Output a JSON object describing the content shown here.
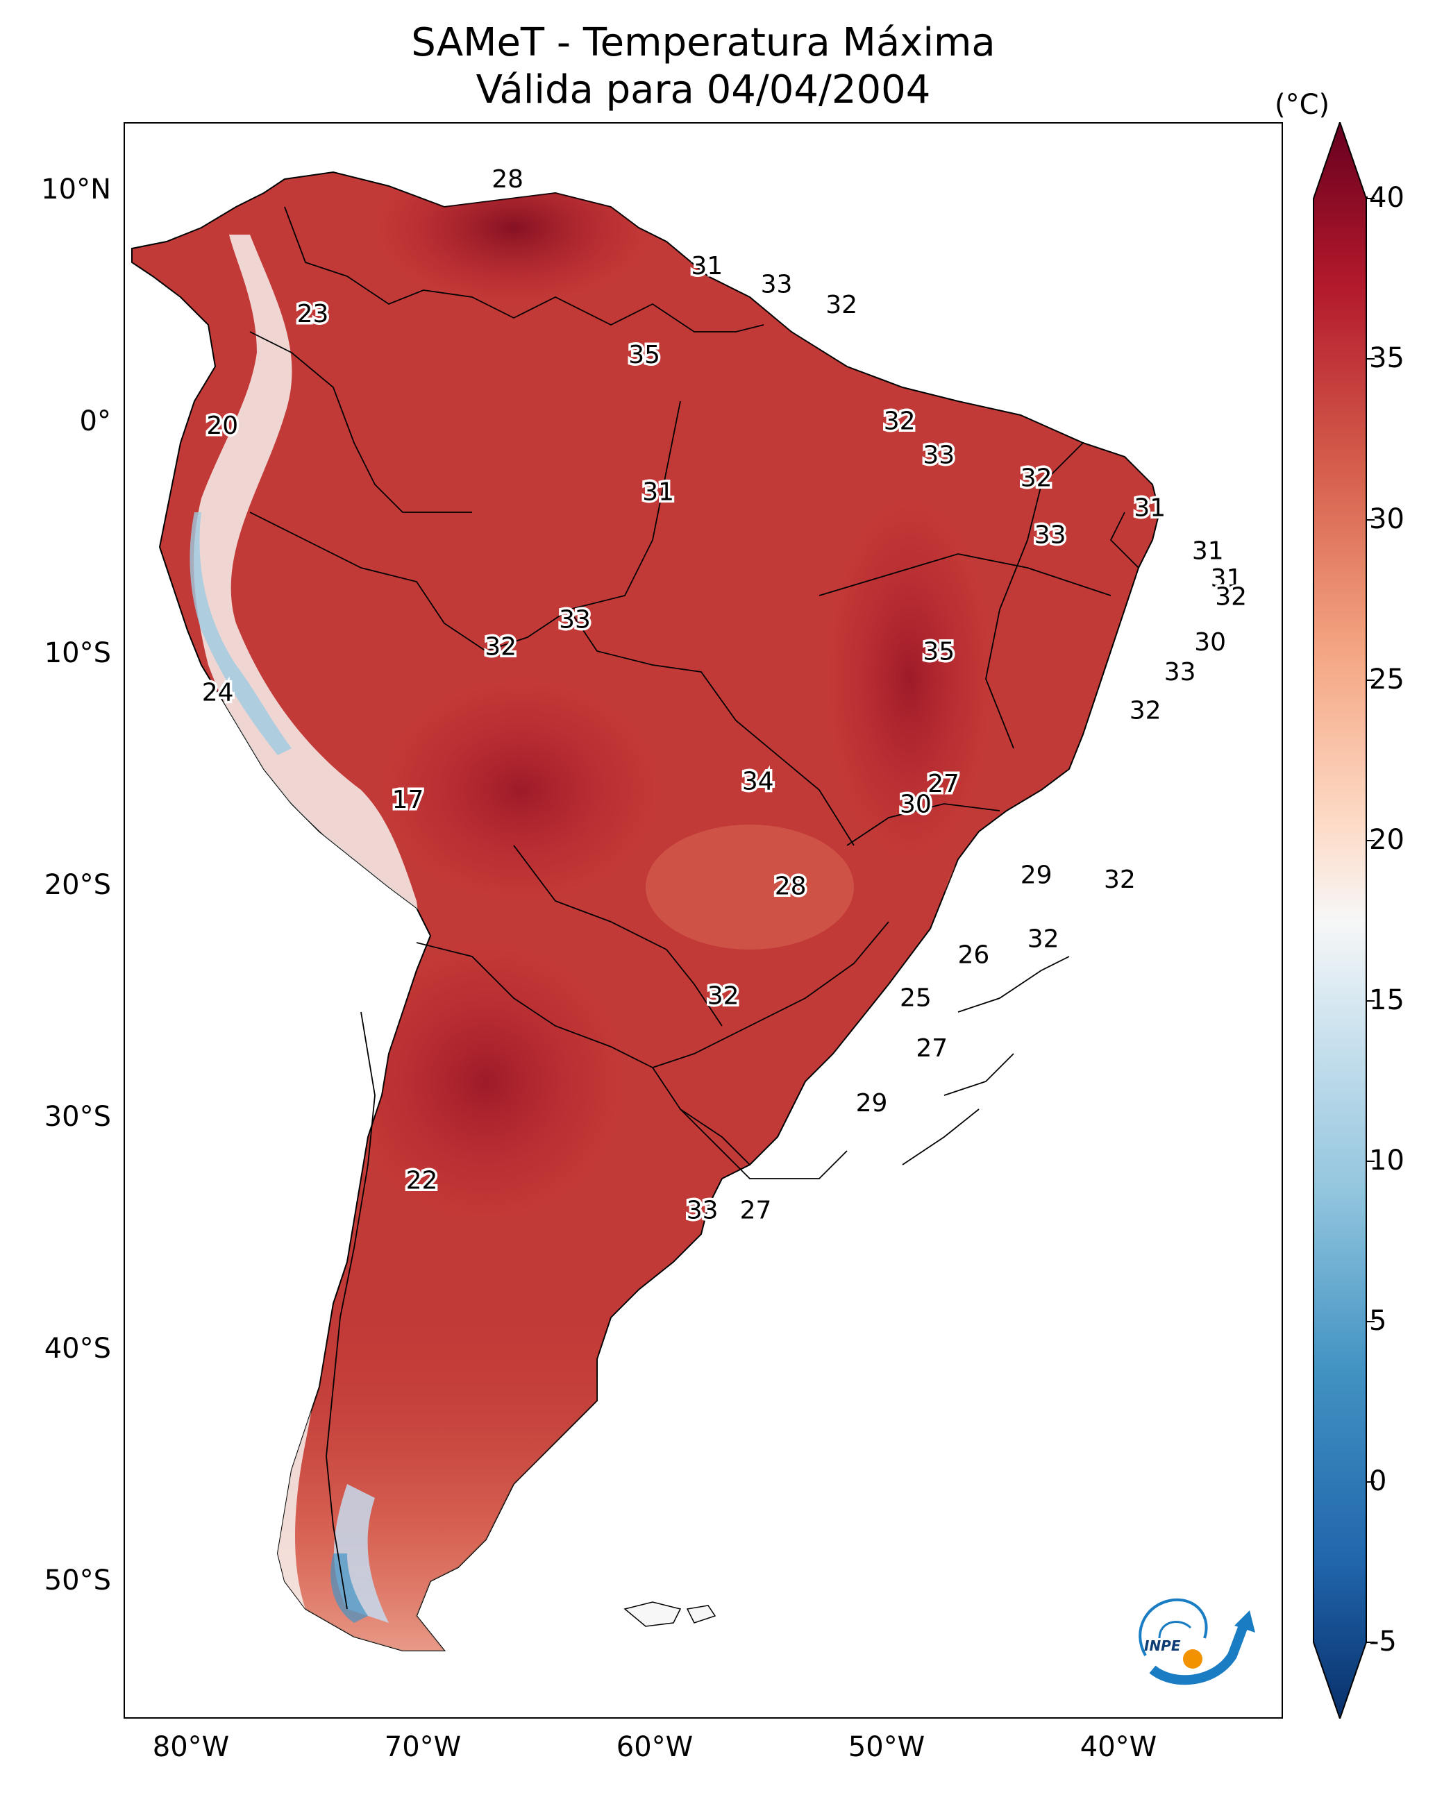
{
  "title": {
    "line1": "SAMeT - Temperatura Máxima",
    "line2": "Válida para 04/04/2004"
  },
  "axes": {
    "lat_labels": [
      "10°N",
      "0°",
      "10°S",
      "20°S",
      "30°S",
      "40°S",
      "50°S"
    ],
    "lon_labels": [
      "80°W",
      "70°W",
      "60°W",
      "50°W",
      "40°W"
    ]
  },
  "colorbar": {
    "unit": "(°C)",
    "ticks": [
      "40",
      "35",
      "30",
      "25",
      "20",
      "15",
      "10",
      "5",
      "0",
      "-5"
    ],
    "range": [
      -5,
      40
    ],
    "colors": [
      "#08306b",
      "#2166ac",
      "#4393c3",
      "#92c5de",
      "#d1e5f0",
      "#f7f7f7",
      "#fddbc7",
      "#f4a582",
      "#d6604d",
      "#b2182b",
      "#67001f"
    ]
  },
  "chart_data": {
    "type": "heatmap",
    "title": "SAMeT - Temperatura Máxima — Válida para 04/04/2004",
    "unit": "°C",
    "extent": {
      "lon": [
        -83,
        -33
      ],
      "lat": [
        -57,
        13
      ]
    },
    "point_labels": [
      {
        "value": "28",
        "lon": -66.5,
        "lat": 10.5
      },
      {
        "value": "31",
        "lon": -57.9,
        "lat": 6.7
      },
      {
        "value": "33",
        "lon": -54.9,
        "lat": 5.9
      },
      {
        "value": "32",
        "lon": -52.1,
        "lat": 5.0
      },
      {
        "value": "23",
        "lon": -74.9,
        "lat": 4.6
      },
      {
        "value": "35",
        "lon": -60.6,
        "lat": 2.8
      },
      {
        "value": "20",
        "lon": -78.8,
        "lat": -0.3
      },
      {
        "value": "32",
        "lon": -49.6,
        "lat": -0.1
      },
      {
        "value": "33",
        "lon": -47.9,
        "lat": -1.6
      },
      {
        "value": "32",
        "lon": -43.7,
        "lat": -2.6
      },
      {
        "value": "31",
        "lon": -60.0,
        "lat": -3.2
      },
      {
        "value": "31",
        "lon": -38.8,
        "lat": -3.9
      },
      {
        "value": "33",
        "lon": -43.1,
        "lat": -5.1
      },
      {
        "value": "31",
        "lon": -36.3,
        "lat": -5.8
      },
      {
        "value": "31",
        "lon": -35.5,
        "lat": -7.0
      },
      {
        "value": "32",
        "lon": -35.3,
        "lat": -7.8
      },
      {
        "value": "33",
        "lon": -63.6,
        "lat": -8.8
      },
      {
        "value": "30",
        "lon": -36.2,
        "lat": -9.8
      },
      {
        "value": "32",
        "lon": -66.8,
        "lat": -10.0
      },
      {
        "value": "35",
        "lon": -47.9,
        "lat": -10.2
      },
      {
        "value": "33",
        "lon": -37.5,
        "lat": -11.1
      },
      {
        "value": "24",
        "lon": -79.0,
        "lat": -12.0
      },
      {
        "value": "32",
        "lon": -39.0,
        "lat": -12.8
      },
      {
        "value": "34",
        "lon": -55.7,
        "lat": -15.9
      },
      {
        "value": "27",
        "lon": -47.7,
        "lat": -16.0
      },
      {
        "value": "30",
        "lon": -48.9,
        "lat": -16.9
      },
      {
        "value": "17",
        "lon": -70.8,
        "lat": -16.7
      },
      {
        "value": "29",
        "lon": -43.7,
        "lat": -20.0
      },
      {
        "value": "28",
        "lon": -54.3,
        "lat": -20.5
      },
      {
        "value": "32",
        "lon": -40.1,
        "lat": -20.2
      },
      {
        "value": "32",
        "lon": -43.4,
        "lat": -22.8
      },
      {
        "value": "26",
        "lon": -46.4,
        "lat": -23.5
      },
      {
        "value": "25",
        "lon": -48.9,
        "lat": -25.4
      },
      {
        "value": "32",
        "lon": -57.2,
        "lat": -25.3
      },
      {
        "value": "27",
        "lon": -48.2,
        "lat": -27.6
      },
      {
        "value": "29",
        "lon": -50.8,
        "lat": -30.0
      },
      {
        "value": "22",
        "lon": -70.2,
        "lat": -33.4
      },
      {
        "value": "33",
        "lon": -58.1,
        "lat": -34.7
      },
      {
        "value": "27",
        "lon": -55.8,
        "lat": -34.7
      }
    ]
  },
  "logo": {
    "text": "INPE"
  }
}
